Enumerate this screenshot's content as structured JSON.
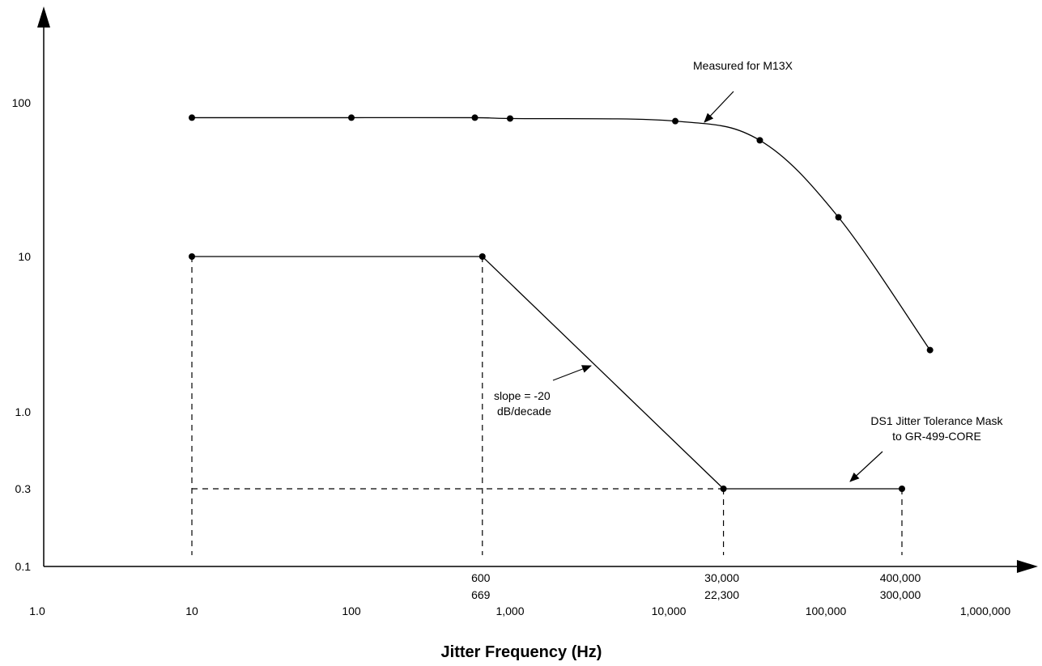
{
  "chart_data": {
    "type": "line",
    "xlabel": "Jitter Frequency (Hz)",
    "ylabel": "",
    "x_scale": "log",
    "y_scale": "log",
    "x_ticks": [
      "1.0",
      "10",
      "100",
      "1,000",
      "10,000",
      "100,000",
      "1,000,000"
    ],
    "y_ticks": [
      "0.1",
      "0.3",
      "1.0",
      "10",
      "100"
    ],
    "x_marks": [
      {
        "labels": [
          "600",
          "669"
        ]
      },
      {
        "labels": [
          "30,000",
          "22,300"
        ]
      },
      {
        "labels": [
          "400,000",
          "300,000"
        ]
      }
    ],
    "series": [
      {
        "name": "Measured for M13X",
        "points": [
          {
            "x": 10,
            "y": 80
          },
          {
            "x": 100,
            "y": 80
          },
          {
            "x": 600,
            "y": 80
          },
          {
            "x": 1000,
            "y": 79
          },
          {
            "x": 11000,
            "y": 76
          },
          {
            "x": 38000,
            "y": 57
          },
          {
            "x": 120000,
            "y": 18
          },
          {
            "x": 450000,
            "y": 2.5
          }
        ]
      },
      {
        "name": "DS1 Jitter Tolerance Mask to GR-499-CORE",
        "points": [
          {
            "x": 10,
            "y": 10
          },
          {
            "x": 669,
            "y": 10
          },
          {
            "x": 22300,
            "y": 0.3
          },
          {
            "x": 300000,
            "y": 0.3
          }
        ]
      }
    ],
    "annotations": [
      {
        "id": "measured",
        "lines": [
          "Measured for M13X"
        ]
      },
      {
        "id": "slope",
        "lines": [
          "slope = -20",
          "dB/decade"
        ]
      },
      {
        "id": "mask",
        "lines": [
          "DS1 Jitter Tolerance Mask",
          "to GR-499-CORE"
        ]
      }
    ]
  }
}
